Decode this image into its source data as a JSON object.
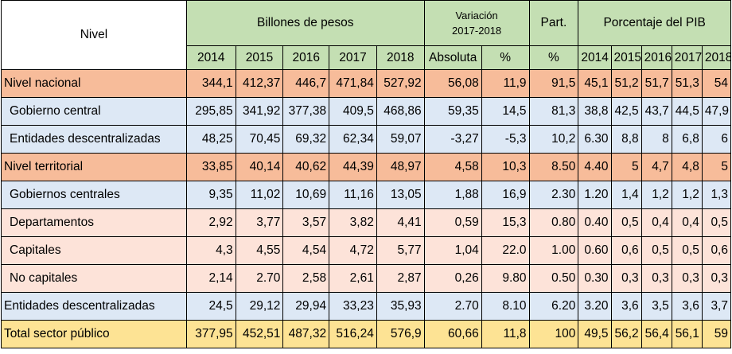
{
  "header": {
    "nivel": "Nivel",
    "billones": "Billones de pesos",
    "variacion_line1": "Variación",
    "variacion_line2": "2017-2018",
    "part": "Part.",
    "pib": "Porcentaje del PIB",
    "years": [
      "2014",
      "2015",
      "2016",
      "2017",
      "2018"
    ],
    "absoluta": "Absoluta",
    "pct": "%",
    "part_pct": "%",
    "pib_years": [
      "2014",
      "2015",
      "2016",
      "2017",
      "2018"
    ]
  },
  "rows": [
    {
      "label": "Nivel nacional",
      "style": "orange",
      "indent": false,
      "values": [
        "344,1",
        "412,37",
        "446,7",
        "471,84",
        "527,92"
      ],
      "abs": "56,08",
      "pct": "11,9",
      "part": "91,5",
      "pib": [
        "45,1",
        "51,2",
        "51,7",
        "51,3",
        "54"
      ]
    },
    {
      "label": "Gobierno central",
      "style": "blue",
      "indent": true,
      "values": [
        "295,85",
        "341,92",
        "377,38",
        "409,5",
        "468,86"
      ],
      "abs": "59,35",
      "pct": "14,5",
      "part": "81,3",
      "pib": [
        "38,8",
        "42,5",
        "43,7",
        "44,5",
        "47,9"
      ]
    },
    {
      "label": "Entidades descentralizadas",
      "style": "blue",
      "indent": true,
      "values": [
        "48,25",
        "70,45",
        "69,32",
        "62,34",
        "59,07"
      ],
      "abs": "-3,27",
      "pct": "-5,3",
      "part": "10,2",
      "pib": [
        "6.30",
        "8,8",
        "8",
        "6,8",
        "6"
      ]
    },
    {
      "label": "Nivel territorial",
      "style": "orange",
      "indent": false,
      "values": [
        "33,85",
        "40,14",
        "40,62",
        "44,39",
        "48,97"
      ],
      "abs": "4,58",
      "pct": "10,3",
      "part": "8.50",
      "pib": [
        "4.40",
        "5",
        "4,7",
        "4,8",
        "5"
      ]
    },
    {
      "label": "Gobiernos centrales",
      "style": "blue",
      "indent": true,
      "values": [
        "9,35",
        "11,02",
        "10,69",
        "11,16",
        "13,05"
      ],
      "abs": "1,88",
      "pct": "16,9",
      "part": "2.30",
      "pib": [
        "1.20",
        "1,4",
        "1,2",
        "1,2",
        "1,3"
      ]
    },
    {
      "label": "Departamentos",
      "style": "pink",
      "indent": true,
      "values": [
        "2,92",
        "3,77",
        "3,57",
        "3,82",
        "4,41"
      ],
      "abs": "0,59",
      "pct": "15,3",
      "part": "0.80",
      "pib": [
        "0.40",
        "0,5",
        "0,4",
        "0,4",
        "0,5"
      ]
    },
    {
      "label": "Capitales",
      "style": "pink",
      "indent": true,
      "values": [
        "4,3",
        "4,55",
        "4,54",
        "4,72",
        "5,77"
      ],
      "abs": "1,04",
      "pct": "22.0",
      "part": "1.00",
      "pib": [
        "0.60",
        "0,6",
        "0,5",
        "0,5",
        "0,6"
      ]
    },
    {
      "label": "No capitales",
      "style": "pink",
      "indent": true,
      "values": [
        "2,14",
        "2.70",
        "2,58",
        "2,61",
        "2,87"
      ],
      "abs": "0,26",
      "pct": "9.80",
      "part": "0.50",
      "pib": [
        "0.30",
        "0,3",
        "0,3",
        "0,3",
        "0,3"
      ]
    },
    {
      "label": "Entidades descentralizadas",
      "style": "blue",
      "indent": false,
      "values": [
        "24,5",
        "29,12",
        "29,94",
        "33,23",
        "35,93"
      ],
      "abs": "2.70",
      "pct": "8.10",
      "part": "6.20",
      "pib": [
        "3.20",
        "3,6",
        "3,5",
        "3,6",
        "3,7"
      ]
    },
    {
      "label": "Total sector público",
      "style": "yellow",
      "indent": false,
      "values": [
        "377,95",
        "452,51",
        "487,32",
        "516,24",
        "576,9"
      ],
      "abs": "60,66",
      "pct": "11,8",
      "part": "100",
      "pib": [
        "49,5",
        "56,2",
        "56,4",
        "56,1",
        "59"
      ]
    }
  ]
}
